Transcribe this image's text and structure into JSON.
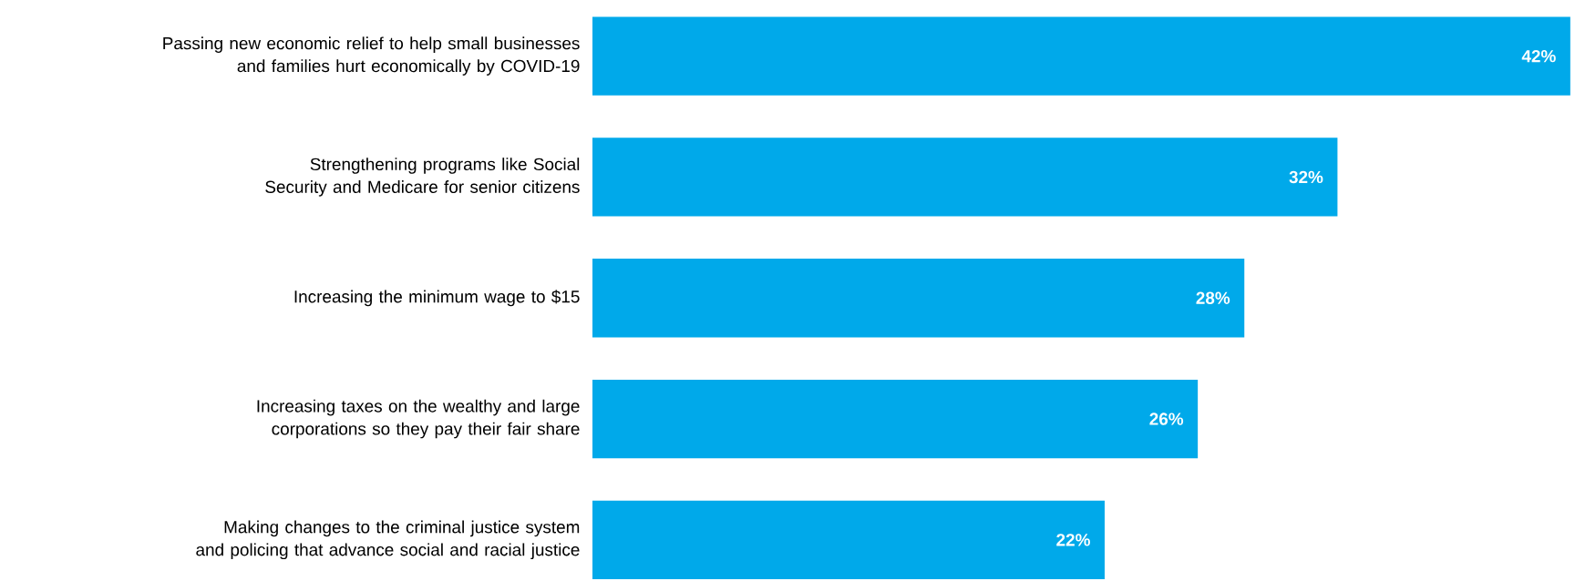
{
  "chart_data": {
    "type": "bar",
    "orientation": "horizontal",
    "categories": [
      "Passing new economic relief to help small businesses and families hurt economically by COVID-19",
      "Strengthening programs like Social Security and Medicare for senior citizens",
      "Increasing the minimum wage to $15",
      "Increasing taxes on the wealthy and large corporations so they pay their fair share",
      "Making changes to the criminal justice system and policing that advance social and racial justice"
    ],
    "values": [
      42,
      32,
      28,
      26,
      22
    ],
    "value_labels": [
      "42%",
      "32%",
      "28%",
      "26%",
      "22%"
    ],
    "color": "#00a9ea"
  }
}
